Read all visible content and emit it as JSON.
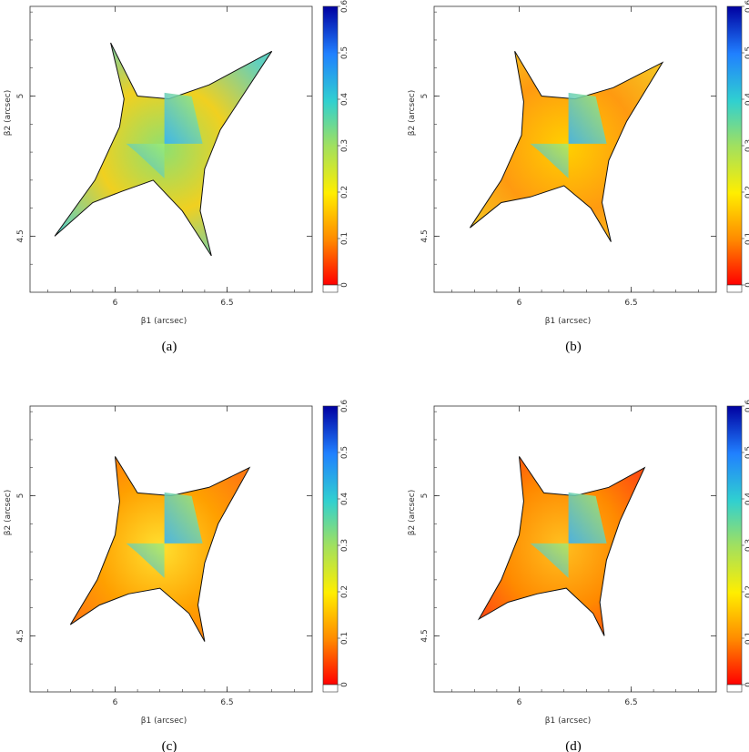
{
  "figure": {
    "panels": [
      {
        "id": "a",
        "caption": "(a)",
        "xlabel": "β1 (arcsec)",
        "ylabel": "β2 (arcsec)"
      },
      {
        "id": "b",
        "caption": "(b)",
        "xlabel": "β1 (arcsec)",
        "ylabel": "β2 (arcsec)"
      },
      {
        "id": "c",
        "caption": "(c)",
        "xlabel": "β1 (arcsec)",
        "ylabel": "β2 (arcsec)"
      },
      {
        "id": "d",
        "caption": "(d)",
        "xlabel": "β1 (arcsec)",
        "ylabel": "β2 (arcsec)"
      }
    ],
    "colorbar": {
      "ticks": [
        "0",
        "0.1",
        "0.2",
        "0.3",
        "0.4",
        "0.5",
        "0.6"
      ],
      "colors": [
        "#ff0000",
        "#ff8800",
        "#ffee00",
        "#a0e060",
        "#30d0d0",
        "#2080ff",
        "#0000a0"
      ]
    }
  },
  "chart_data": [
    {
      "type": "heatmap",
      "panel": "a",
      "xlabel": "β1 (arcsec)",
      "ylabel": "β2 (arcsec)",
      "xticks": [
        6,
        6.5
      ],
      "yticks": [
        4.5,
        5
      ],
      "xlim": [
        5.62,
        6.88
      ],
      "ylim": [
        4.3,
        5.32
      ],
      "caustic": [
        [
          5.73,
          4.5
        ],
        [
          5.9,
          4.62
        ],
        [
          6.03,
          4.66
        ],
        [
          6.17,
          4.7
        ],
        [
          6.3,
          4.59
        ],
        [
          6.43,
          4.43
        ],
        [
          6.38,
          4.59
        ],
        [
          6.4,
          4.74
        ],
        [
          6.47,
          4.88
        ],
        [
          6.7,
          5.16
        ],
        [
          6.42,
          5.04
        ],
        [
          6.24,
          4.99
        ],
        [
          6.1,
          5.0
        ],
        [
          5.98,
          5.19
        ],
        [
          6.04,
          4.99
        ],
        [
          6.02,
          4.89
        ],
        [
          5.91,
          4.7
        ]
      ],
      "colorbar": {
        "min": 0,
        "max": 0.6
      }
    },
    {
      "type": "heatmap",
      "panel": "b",
      "xlabel": "β1 (arcsec)",
      "ylabel": "β2 (arcsec)",
      "xticks": [
        6,
        6.5
      ],
      "yticks": [
        4.5,
        5
      ],
      "xlim": [
        5.62,
        6.88
      ],
      "ylim": [
        4.3,
        5.32
      ],
      "caustic": [
        [
          5.78,
          4.53
        ],
        [
          5.92,
          4.62
        ],
        [
          6.05,
          4.64
        ],
        [
          6.2,
          4.68
        ],
        [
          6.32,
          4.6
        ],
        [
          6.41,
          4.48
        ],
        [
          6.37,
          4.62
        ],
        [
          6.4,
          4.77
        ],
        [
          6.48,
          4.91
        ],
        [
          6.64,
          5.12
        ],
        [
          6.42,
          5.03
        ],
        [
          6.25,
          4.99
        ],
        [
          6.1,
          5.0
        ],
        [
          5.98,
          5.16
        ],
        [
          6.02,
          4.98
        ],
        [
          6.01,
          4.86
        ],
        [
          5.92,
          4.7
        ]
      ],
      "colorbar": {
        "min": 0,
        "max": 0.6
      }
    },
    {
      "type": "heatmap",
      "panel": "c",
      "xlabel": "β1 (arcsec)",
      "ylabel": "β2 (arcsec)",
      "xticks": [
        6,
        6.5
      ],
      "yticks": [
        4.5,
        5
      ],
      "xlim": [
        5.62,
        6.88
      ],
      "ylim": [
        4.3,
        5.32
      ],
      "caustic": [
        [
          5.8,
          4.54
        ],
        [
          5.93,
          4.61
        ],
        [
          6.06,
          4.65
        ],
        [
          6.2,
          4.67
        ],
        [
          6.33,
          4.58
        ],
        [
          6.4,
          4.48
        ],
        [
          6.37,
          4.61
        ],
        [
          6.4,
          4.76
        ],
        [
          6.46,
          4.9
        ],
        [
          6.6,
          5.1
        ],
        [
          6.42,
          5.03
        ],
        [
          6.25,
          5.0
        ],
        [
          6.1,
          5.01
        ],
        [
          6.0,
          5.14
        ],
        [
          6.02,
          4.98
        ],
        [
          6.0,
          4.86
        ],
        [
          5.92,
          4.7
        ]
      ],
      "colorbar": {
        "min": 0,
        "max": 0.6
      }
    },
    {
      "type": "heatmap",
      "panel": "d",
      "xlabel": "β1 (arcsec)",
      "ylabel": "β2 (arcsec)",
      "xticks": [
        6,
        6.5
      ],
      "yticks": [
        4.5,
        5
      ],
      "xlim": [
        5.62,
        6.88
      ],
      "ylim": [
        4.3,
        5.32
      ],
      "caustic": [
        [
          5.82,
          4.56
        ],
        [
          5.95,
          4.62
        ],
        [
          6.08,
          4.65
        ],
        [
          6.21,
          4.67
        ],
        [
          6.33,
          4.58
        ],
        [
          6.38,
          4.5
        ],
        [
          6.36,
          4.62
        ],
        [
          6.39,
          4.77
        ],
        [
          6.45,
          4.91
        ],
        [
          6.56,
          5.1
        ],
        [
          6.4,
          5.03
        ],
        [
          6.25,
          5.0
        ],
        [
          6.11,
          5.01
        ],
        [
          6.0,
          5.14
        ],
        [
          6.02,
          4.98
        ],
        [
          6.0,
          4.86
        ],
        [
          5.92,
          4.7
        ]
      ],
      "colorbar": {
        "min": 0,
        "max": 0.6
      }
    }
  ]
}
